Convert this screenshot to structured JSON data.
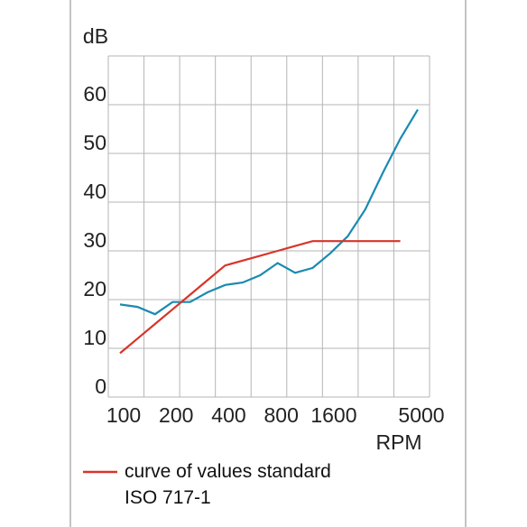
{
  "chart_data": {
    "type": "line",
    "y_label": "dB",
    "x_label": "RPM",
    "categories": [
      "100",
      null,
      null,
      "200",
      null,
      null,
      "400",
      null,
      null,
      "800",
      null,
      null,
      "1600",
      null,
      null,
      null,
      null,
      "5000"
    ],
    "series": [
      {
        "color": "#1a8ab0",
        "values": [
          19,
          18.5,
          17,
          19.5,
          19.5,
          21.5,
          23,
          23.5,
          25,
          27.5,
          25.5,
          26.5,
          29.5,
          33,
          38.5,
          46,
          53,
          59
        ]
      },
      {
        "name": "curve of values standard ISO 717-1",
        "color": "#d8342a",
        "values": [
          9,
          12,
          15,
          18,
          21,
          24,
          27,
          28,
          29,
          30,
          31,
          32,
          32,
          32,
          32,
          32,
          32,
          null
        ]
      }
    ],
    "ylim": [
      0,
      70
    ],
    "yticks": [
      0,
      10,
      20,
      30,
      40,
      50,
      60
    ],
    "grid": true
  }
}
